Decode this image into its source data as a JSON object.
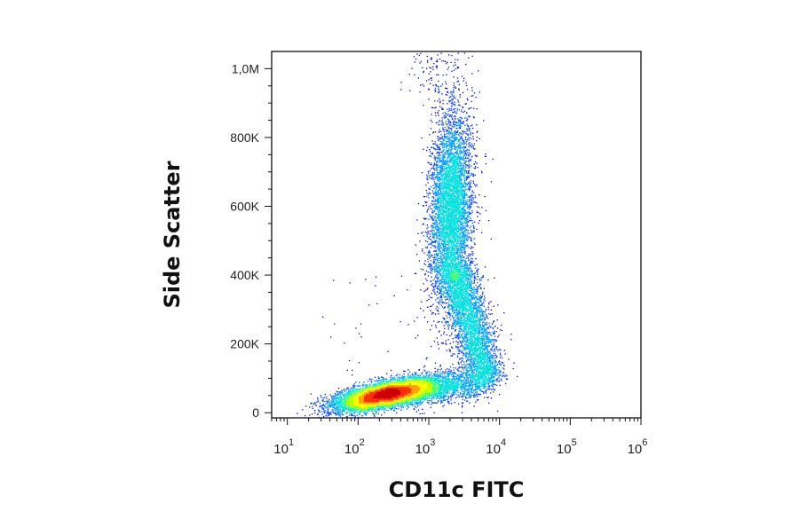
{
  "chart_data": {
    "type": "scatter",
    "title": "",
    "xlabel": "CD11c FITC",
    "ylabel": "Side Scatter",
    "x_scale": "log",
    "xlim": [
      6,
      1000000
    ],
    "ylim": [
      -15000,
      1050000
    ],
    "x_ticks": [
      {
        "value": 10,
        "base": "10",
        "exp": "1"
      },
      {
        "value": 100,
        "base": "10",
        "exp": "2"
      },
      {
        "value": 1000,
        "base": "10",
        "exp": "3"
      },
      {
        "value": 10000,
        "base": "10",
        "exp": "4"
      },
      {
        "value": 100000,
        "base": "10",
        "exp": "5"
      },
      {
        "value": 1000000,
        "base": "10",
        "exp": "6"
      }
    ],
    "y_ticks": [
      {
        "value": 0,
        "label": "0"
      },
      {
        "value": 200000,
        "label": "200K"
      },
      {
        "value": 400000,
        "label": "400K"
      },
      {
        "value": 600000,
        "label": "600K"
      },
      {
        "value": 800000,
        "label": "800K"
      },
      {
        "value": 1000000,
        "label": "1,0M"
      }
    ],
    "grid": false,
    "colormap": [
      "#0000cc",
      "#0040ff",
      "#00a0ff",
      "#00e0e0",
      "#40ff80",
      "#c0ff00",
      "#ffff00",
      "#ffa000",
      "#ff3000",
      "#cc0000"
    ],
    "populations": [
      {
        "x_center": 250,
        "y_center": 55000,
        "x_spread_decades": 0.36,
        "y_spread": 25000,
        "density": 1.0
      },
      {
        "x_center": 2000,
        "y_center": 600000,
        "x_spread_decades": 0.15,
        "y_spread": 120000,
        "density": 0.45
      },
      {
        "x_center": 3500,
        "y_center": 260000,
        "x_spread_decades": 0.14,
        "y_spread": 80000,
        "density": 0.3
      }
    ]
  }
}
